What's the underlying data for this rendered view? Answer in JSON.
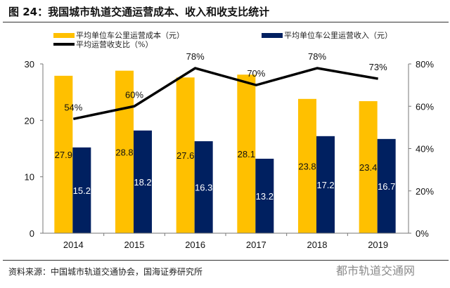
{
  "title": "图 24：我国城市轨道交通运营成本、收入和收支比统计",
  "source": "资料来源：中国城市轨道交通协会，国海证券研究所",
  "watermark": "都市轨道交通网",
  "chart_data": {
    "type": "bar+line",
    "categories": [
      "2014",
      "2015",
      "2016",
      "2017",
      "2018",
      "2019"
    ],
    "series": [
      {
        "name": "平均单位车公里运营成本（元）",
        "type": "bar",
        "axis": "left",
        "color": "#FFC000",
        "values": [
          27.9,
          28.8,
          27.6,
          28.1,
          23.8,
          23.4
        ]
      },
      {
        "name": "平均单位车公里运营收入（元）",
        "type": "bar",
        "axis": "left",
        "color": "#002060",
        "values": [
          15.2,
          18.2,
          16.3,
          13.2,
          17.2,
          16.7
        ]
      },
      {
        "name": "平均运营收支比（%）",
        "type": "line",
        "axis": "right",
        "color": "#000000",
        "values": [
          54,
          60,
          78,
          70,
          78,
          73
        ]
      }
    ],
    "left_axis": {
      "ylim": [
        0,
        30
      ],
      "ticks": [
        "0",
        "10",
        "20",
        "30"
      ]
    },
    "right_axis": {
      "ylim": [
        0,
        80
      ],
      "ticks": [
        "0%",
        "20%",
        "40%",
        "60%",
        "80%"
      ]
    },
    "line_labels": [
      "54%",
      "60%",
      "78%",
      "70%",
      "78%",
      "73%"
    ],
    "legend_position": "top",
    "grid": false
  }
}
